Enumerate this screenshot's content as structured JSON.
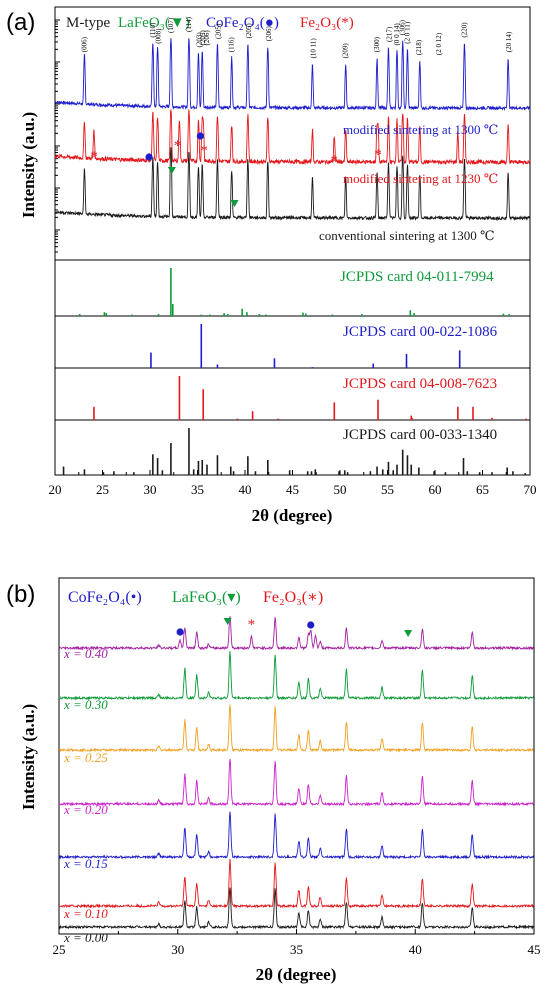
{
  "colors": {
    "black": "#1a1a1a",
    "blue": "#1d1dcc",
    "red": "#e3171b",
    "green": "#0e9b38",
    "orange": "#f0a020",
    "magenta": "#cc22cc",
    "purple": "#a020a0"
  },
  "chart_data": [
    {
      "type": "line",
      "panel_label": "(a)",
      "xlabel": "2θ (degree)",
      "ylabel": "Intensity (a.u.)",
      "xlim": [
        20,
        70
      ],
      "xticks": [
        "20",
        "25",
        "30",
        "35",
        "40",
        "45",
        "50",
        "55",
        "60",
        "65",
        "70"
      ],
      "log_scale_y": true,
      "legend": [
        {
          "text": "M-type",
          "color": "#1a1a1a"
        },
        {
          "text": "LaFeO₃(▼)",
          "color": "#0e9b38"
        },
        {
          "text": "CoFe₂O₄(●)",
          "color": "#1d1dcc"
        },
        {
          "text": "Fe₂O₃(*)",
          "color": "#e3171b"
        }
      ],
      "peaks_2theta": [
        23.1,
        30.3,
        30.8,
        32.2,
        34.1,
        35.1,
        35.5,
        37.1,
        38.6,
        40.3,
        42.4,
        47.1,
        50.6,
        53.9,
        55.1,
        56.0,
        56.6,
        57.1,
        58.4,
        63.1,
        67.7
      ],
      "miller_labels": [
        {
          "x": 23.1,
          "text": "(006)"
        },
        {
          "x": 30.3,
          "text": "(110)"
        },
        {
          "x": 30.9,
          "text": "(008)"
        },
        {
          "x": 32.2,
          "text": "(107)"
        },
        {
          "x": 34.1,
          "text": "(114)"
        },
        {
          "x": 35.2,
          "text": "(203)"
        },
        {
          "x": 35.6,
          "text": "(205)"
        },
        {
          "x": 36.0,
          "text": "(206)"
        },
        {
          "x": 37.2,
          "text": "(205)"
        },
        {
          "x": 38.6,
          "text": "(116)"
        },
        {
          "x": 40.4,
          "text": "(205)"
        },
        {
          "x": 42.5,
          "text": "(206)"
        },
        {
          "x": 47.2,
          "text": "(10 11)"
        },
        {
          "x": 50.6,
          "text": "(209)"
        },
        {
          "x": 53.9,
          "text": "(300)"
        },
        {
          "x": 55.2,
          "text": "(217)"
        },
        {
          "x": 56.0,
          "text": "(0 0 14)"
        },
        {
          "x": 56.6,
          "text": "(306)"
        },
        {
          "x": 57.1,
          "text": "(2 0 11)"
        },
        {
          "x": 58.3,
          "text": "(218)"
        },
        {
          "x": 60.4,
          "text": "(2 0 12)"
        },
        {
          "x": 63.1,
          "text": "(220)"
        },
        {
          "x": 67.8,
          "text": "(20 14)"
        }
      ],
      "series": [
        {
          "name": "modified sintering at 1300 ℃",
          "color": "#1d1dcc",
          "markers": [
            {
              "x": 29.9,
              "kind": "dot",
              "color": "#1d1dcc"
            },
            {
              "x": 35.3,
              "kind": "dot",
              "color": "#1d1dcc"
            }
          ]
        },
        {
          "name": "modified sintering at 1230 ℃",
          "color": "#e3171b",
          "markers": [
            {
              "x": 24.1,
              "kind": "star"
            },
            {
              "x": 33.1,
              "kind": "star"
            },
            {
              "x": 35.6,
              "kind": "star"
            },
            {
              "x": 49.4,
              "kind": "star"
            },
            {
              "x": 54.0,
              "kind": "star"
            }
          ]
        },
        {
          "name": "conventional sintering at 1300 ℃",
          "color": "#1a1a1a",
          "markers": [
            {
              "x": 32.2,
              "kind": "triangle"
            },
            {
              "x": 39.0,
              "kind": "triangle"
            }
          ]
        }
      ],
      "reference_cards": [
        {
          "name": "JCPDS card 04-011-7994",
          "color": "#0e9b38",
          "lines": [
            [
              22.6,
              0.04
            ],
            [
              25.2,
              0.08
            ],
            [
              25.4,
              0.06
            ],
            [
              28.1,
              0.03
            ],
            [
              30.9,
              0.04
            ],
            [
              32.2,
              1.0
            ],
            [
              32.4,
              0.25
            ],
            [
              35.4,
              0.03
            ],
            [
              36.3,
              0.03
            ],
            [
              37.8,
              0.06
            ],
            [
              38.2,
              0.04
            ],
            [
              39.7,
              0.15
            ],
            [
              40.2,
              0.08
            ],
            [
              41.5,
              0.04
            ],
            [
              42.2,
              0.03
            ],
            [
              46.1,
              0.07
            ],
            [
              46.4,
              0.05
            ],
            [
              49.2,
              0.03
            ],
            [
              52.3,
              0.04
            ],
            [
              57.4,
              0.12
            ],
            [
              57.8,
              0.06
            ],
            [
              67.2,
              0.05
            ],
            [
              67.8,
              0.04
            ]
          ]
        },
        {
          "name": "JCPDS card 00-022-1086",
          "color": "#1d1dcc",
          "lines": [
            [
              18.3,
              0.1
            ],
            [
              30.1,
              0.35
            ],
            [
              35.4,
              1.0
            ],
            [
              37.1,
              0.08
            ],
            [
              43.1,
              0.22
            ],
            [
              47.1,
              0.02
            ],
            [
              53.5,
              0.1
            ],
            [
              57.0,
              0.32
            ],
            [
              62.6,
              0.4
            ]
          ]
        },
        {
          "name": "JCPDS card 04-008-7623",
          "color": "#e3171b",
          "lines": [
            [
              24.1,
              0.3
            ],
            [
              33.1,
              1.0
            ],
            [
              35.6,
              0.7
            ],
            [
              39.2,
              0.03
            ],
            [
              40.8,
              0.2
            ],
            [
              43.5,
              0.03
            ],
            [
              49.4,
              0.4
            ],
            [
              54.0,
              0.46
            ],
            [
              57.5,
              0.1
            ],
            [
              57.6,
              0.04
            ],
            [
              62.4,
              0.3
            ],
            [
              64.0,
              0.3
            ],
            [
              66.0,
              0.05
            ],
            [
              69.6,
              0.03
            ]
          ]
        },
        {
          "name": "JCPDS card 00-033-1340",
          "color": "#1a1a1a",
          "lines": [
            [
              20.9,
              0.18
            ],
            [
              23.1,
              0.12
            ],
            [
              25.1,
              0.06
            ],
            [
              26.2,
              0.08
            ],
            [
              28.3,
              0.06
            ],
            [
              30.3,
              0.44
            ],
            [
              30.8,
              0.36
            ],
            [
              31.3,
              0.1
            ],
            [
              32.2,
              0.68
            ],
            [
              34.1,
              1.0
            ],
            [
              34.6,
              0.12
            ],
            [
              35.1,
              0.3
            ],
            [
              35.5,
              0.32
            ],
            [
              36.0,
              0.22
            ],
            [
              37.1,
              0.42
            ],
            [
              38.5,
              0.18
            ],
            [
              38.8,
              0.08
            ],
            [
              40.3,
              0.4
            ],
            [
              41.1,
              0.08
            ],
            [
              42.4,
              0.32
            ],
            [
              44.7,
              0.1
            ],
            [
              46.6,
              0.08
            ],
            [
              47.0,
              0.08
            ],
            [
              47.4,
              0.12
            ],
            [
              49.9,
              0.08
            ],
            [
              50.5,
              0.1
            ],
            [
              50.8,
              0.06
            ],
            [
              53.2,
              0.08
            ],
            [
              53.9,
              0.18
            ],
            [
              54.5,
              0.12
            ],
            [
              55.1,
              0.28
            ],
            [
              55.6,
              0.1
            ],
            [
              56.0,
              0.22
            ],
            [
              56.6,
              0.54
            ],
            [
              57.1,
              0.42
            ],
            [
              57.5,
              0.22
            ],
            [
              58.3,
              0.16
            ],
            [
              59.9,
              0.08
            ],
            [
              61.1,
              0.06
            ],
            [
              63.0,
              0.36
            ],
            [
              63.4,
              0.08
            ],
            [
              64.7,
              0.06
            ],
            [
              66.0,
              0.06
            ],
            [
              67.6,
              0.16
            ],
            [
              68.2,
              0.08
            ],
            [
              69.5,
              0.04
            ]
          ]
        }
      ]
    },
    {
      "type": "line",
      "panel_label": "(b)",
      "xlabel": "2θ (degree)",
      "ylabel": "Intensity (a.u.)",
      "xlim": [
        25,
        45
      ],
      "xticks": [
        "25",
        "30",
        "35",
        "40",
        "45"
      ],
      "legend": [
        {
          "text": "CoFe₂O₄(•)",
          "color": "#1d1dcc"
        },
        {
          "text": "LaFeO₃(▾)",
          "color": "#0e9b38"
        },
        {
          "text": "Fe₂O₃(∗)",
          "color": "#e3171b"
        }
      ],
      "peaks_2theta": [
        30.3,
        30.8,
        32.2,
        34.1,
        35.1,
        35.5,
        37.1,
        38.6,
        40.3,
        42.4
      ],
      "series": [
        {
          "name": "x = 0.40",
          "color": "#a020a0"
        },
        {
          "name": "x = 0.30",
          "color": "#0e9b38"
        },
        {
          "name": "x = 0.25",
          "color": "#f0a020"
        },
        {
          "name": "x = 0.20",
          "color": "#cc22cc"
        },
        {
          "name": "x = 0.15",
          "color": "#1d1dcc"
        },
        {
          "name": "x = 0.10",
          "color": "#e3171b"
        },
        {
          "name": "x = 0.00",
          "color": "#1a1a1a"
        }
      ],
      "markers": [
        {
          "x": 30.1,
          "kind": "dot",
          "color": "#1d1dcc"
        },
        {
          "x": 32.1,
          "kind": "triangle",
          "color": "#0e9b38"
        },
        {
          "x": 33.1,
          "kind": "star",
          "color": "#e3171b"
        },
        {
          "x": 35.6,
          "kind": "dot",
          "color": "#1d1dcc"
        },
        {
          "x": 39.7,
          "kind": "triangle",
          "color": "#0e9b38"
        }
      ]
    }
  ]
}
